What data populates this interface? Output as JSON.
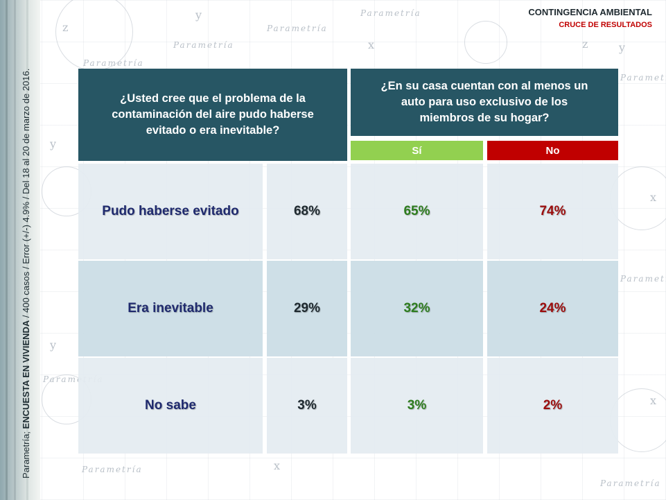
{
  "header": {
    "title": "CONTINGENCIA AMBIENTAL",
    "subtitle": "CRUCE DE RESULTADOS"
  },
  "side_note": {
    "prefix": "Parametría; ",
    "bold": "ENCUESTA EN VIVIENDA",
    "suffix": " / 400 casos / Error (+/-) 4.9% / Del 18 al 20 de marzo de 2016."
  },
  "background": {
    "watermark": "Parametría",
    "letters": [
      "x",
      "y",
      "z"
    ]
  },
  "table": {
    "question_left": "¿Usted cree que el problema de la contaminación del aire pudo haberse evitado o era inevitable?",
    "question_right": "¿En su casa cuentan con al menos un auto para uso exclusivo de los miembros de su hogar?",
    "col_si": "Sí",
    "col_no": "No",
    "rows": [
      {
        "label": "Pudo haberse evitado",
        "total": "68%",
        "si": "65%",
        "no": "74%"
      },
      {
        "label": "Era inevitable",
        "total": "29%",
        "si": "32%",
        "no": "24%"
      },
      {
        "label": "No sabe",
        "total": "3%",
        "si": "3%",
        "no": "2%"
      }
    ]
  },
  "colors": {
    "header_bg": "#275664",
    "si": "#92d050",
    "no": "#c00000"
  }
}
